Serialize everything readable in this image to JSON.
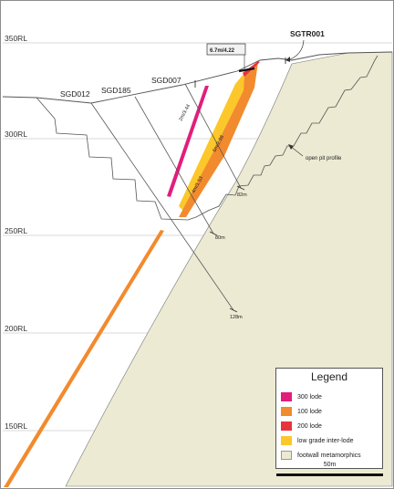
{
  "levels": [
    "350RL",
    "300RL",
    "250RL",
    "200RL",
    "150RL"
  ],
  "holes": {
    "sgd012": "SGD012",
    "sgd185": "SGD185",
    "sgd007": "SGD007",
    "sgtr001": "SGTR001"
  },
  "intercepts": {
    "trench": "6.7m/4.22",
    "i300": "2m/3.44",
    "i100": "6m/2.98",
    "ideep": "4m/1.53"
  },
  "depths": {
    "d82": "82m",
    "d80": "80m",
    "d128": "128m"
  },
  "annotations": {
    "pit": "open pit profile"
  },
  "legend": {
    "title": "Legend",
    "items": [
      {
        "label": "300 lode",
        "color": "#e21d7c"
      },
      {
        "label": "100 lode",
        "color": "#f28a2e"
      },
      {
        "label": "200 lode",
        "color": "#e8323c"
      },
      {
        "label": "low grade inter-lode",
        "color": "#fcc72a"
      },
      {
        "label": "footwall metamorphics",
        "color": "#ecead2"
      }
    ]
  },
  "scale": {
    "label": "50m"
  },
  "colors": {
    "lode300": "#e21d7c",
    "lode100": "#f28a2e",
    "lode200": "#e8323c",
    "interlode": "#fcc72a",
    "footwall": "#ecead2"
  }
}
